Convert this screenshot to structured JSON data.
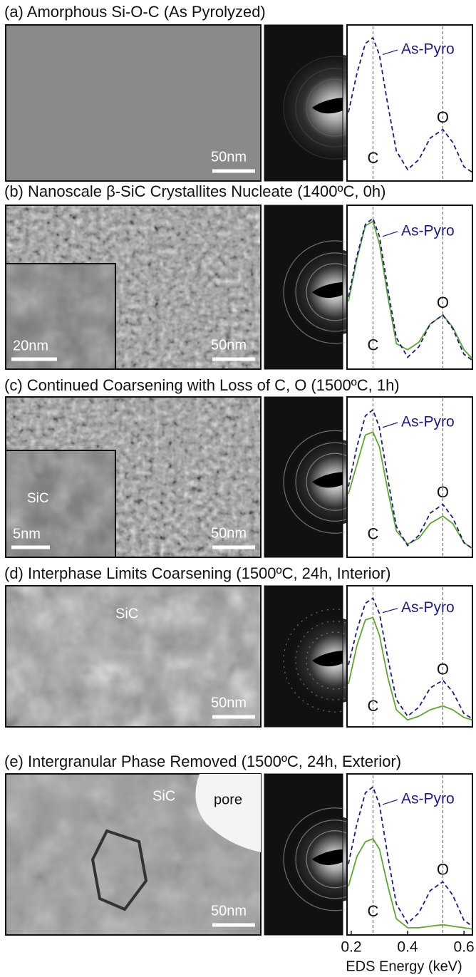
{
  "panels": [
    {
      "title": "(a) Amorphous Si-O-C (As Pyrolyzed)",
      "scale_bar": "50nm"
    },
    {
      "title": "(b) Nanoscale β-SiC Crystallites Nucleate (1400ºC, 0h)",
      "scale_bar": "50nm",
      "inset_scale_bar": "20nm"
    },
    {
      "title": "(c) Continued Coarsening with Loss of C, O (1500ºC, 1h)",
      "scale_bar": "50nm",
      "inset_scale_bar": "5nm",
      "inset_label": "SiC"
    },
    {
      "title": "(d) Interphase Limits Coarsening (1500ºC, 24h, Interior)",
      "scale_bar": "50nm",
      "labels": [
        "SiC"
      ]
    },
    {
      "title": "(e) Intergranular Phase Removed (1500ºC, 24h, Exterior)",
      "scale_bar": "50nm",
      "labels": [
        "SiC",
        "pore"
      ]
    }
  ],
  "chart_data": [
    {
      "type": "line",
      "x": [
        0.19,
        0.22,
        0.25,
        0.277,
        0.3,
        0.33,
        0.36,
        0.4,
        0.44,
        0.48,
        0.525,
        0.56,
        0.6,
        0.63
      ],
      "xlim": [
        0.185,
        0.63
      ],
      "ylim": [
        0,
        1
      ],
      "series": [
        {
          "name": "As-Pyro",
          "color": "#1a1a8c",
          "values": [
            0.45,
            0.72,
            0.93,
            0.97,
            0.85,
            0.5,
            0.18,
            0.05,
            0.12,
            0.27,
            0.33,
            0.24,
            0.07,
            0.03
          ]
        }
      ],
      "annotations": [
        {
          "text": "C",
          "x": 0.277
        },
        {
          "text": "O",
          "x": 0.525
        }
      ]
    },
    {
      "type": "line",
      "x": [
        0.19,
        0.22,
        0.25,
        0.277,
        0.3,
        0.33,
        0.36,
        0.4,
        0.44,
        0.48,
        0.525,
        0.56,
        0.6,
        0.63
      ],
      "xlim": [
        0.185,
        0.63
      ],
      "ylim": [
        0,
        1
      ],
      "series": [
        {
          "name": "As-Pyro",
          "color": "#1a1a8c",
          "values": [
            0.45,
            0.72,
            0.93,
            0.97,
            0.85,
            0.5,
            0.18,
            0.05,
            0.12,
            0.27,
            0.33,
            0.24,
            0.07,
            0.03
          ]
        },
        {
          "color": "#5aaa2a",
          "values": [
            0.42,
            0.7,
            0.92,
            0.95,
            0.8,
            0.45,
            0.14,
            0.1,
            0.15,
            0.27,
            0.33,
            0.25,
            0.1,
            0.04
          ]
        }
      ],
      "annotations": [
        {
          "text": "C",
          "x": 0.277
        },
        {
          "text": "O",
          "x": 0.525
        }
      ]
    },
    {
      "type": "line",
      "x": [
        0.19,
        0.22,
        0.25,
        0.277,
        0.3,
        0.33,
        0.36,
        0.4,
        0.44,
        0.48,
        0.525,
        0.56,
        0.6,
        0.63
      ],
      "xlim": [
        0.185,
        0.63
      ],
      "ylim": [
        0,
        1
      ],
      "series": [
        {
          "name": "As-Pyro",
          "color": "#1a1a8c",
          "values": [
            0.45,
            0.72,
            0.93,
            0.97,
            0.85,
            0.5,
            0.18,
            0.05,
            0.12,
            0.27,
            0.33,
            0.24,
            0.07,
            0.03
          ]
        },
        {
          "color": "#5aaa2a",
          "values": [
            0.4,
            0.6,
            0.8,
            0.82,
            0.72,
            0.42,
            0.15,
            0.06,
            0.1,
            0.2,
            0.25,
            0.2,
            0.07,
            0.03
          ]
        }
      ],
      "annotations": [
        {
          "text": "C",
          "x": 0.277
        },
        {
          "text": "O",
          "x": 0.525
        }
      ]
    },
    {
      "type": "line",
      "x": [
        0.19,
        0.22,
        0.25,
        0.277,
        0.3,
        0.33,
        0.36,
        0.4,
        0.44,
        0.48,
        0.525,
        0.56,
        0.6,
        0.63
      ],
      "xlim": [
        0.185,
        0.63
      ],
      "ylim": [
        0,
        1
      ],
      "series": [
        {
          "name": "As-Pyro",
          "color": "#1a1a8c",
          "values": [
            0.45,
            0.72,
            0.93,
            0.97,
            0.85,
            0.5,
            0.18,
            0.05,
            0.12,
            0.27,
            0.33,
            0.24,
            0.07,
            0.03
          ]
        },
        {
          "color": "#5aaa2a",
          "values": [
            0.3,
            0.6,
            0.8,
            0.82,
            0.68,
            0.35,
            0.1,
            0.02,
            0.05,
            0.1,
            0.13,
            0.1,
            0.04,
            0.02
          ]
        }
      ],
      "annotations": [
        {
          "text": "C",
          "x": 0.277
        },
        {
          "text": "O",
          "x": 0.525
        }
      ]
    },
    {
      "type": "line",
      "x": [
        0.19,
        0.22,
        0.25,
        0.277,
        0.3,
        0.33,
        0.36,
        0.4,
        0.44,
        0.48,
        0.525,
        0.56,
        0.6,
        0.63
      ],
      "xlim": [
        0.185,
        0.63
      ],
      "ylim": [
        0,
        1
      ],
      "series": [
        {
          "name": "As-Pyro",
          "color": "#1a1a8c",
          "values": [
            0.45,
            0.72,
            0.93,
            0.97,
            0.85,
            0.5,
            0.18,
            0.05,
            0.12,
            0.27,
            0.33,
            0.24,
            0.07,
            0.03
          ]
        },
        {
          "color": "#5aaa2a",
          "values": [
            0.3,
            0.5,
            0.6,
            0.62,
            0.55,
            0.3,
            0.08,
            0.02,
            0.02,
            0.03,
            0.04,
            0.03,
            0.02,
            0.01
          ]
        }
      ],
      "annotations": [
        {
          "text": "C",
          "x": 0.277
        },
        {
          "text": "O",
          "x": 0.525
        }
      ],
      "xticks": [
        0.2,
        0.4,
        0.6
      ],
      "xlabel": "EDS Energy (keV)"
    }
  ]
}
